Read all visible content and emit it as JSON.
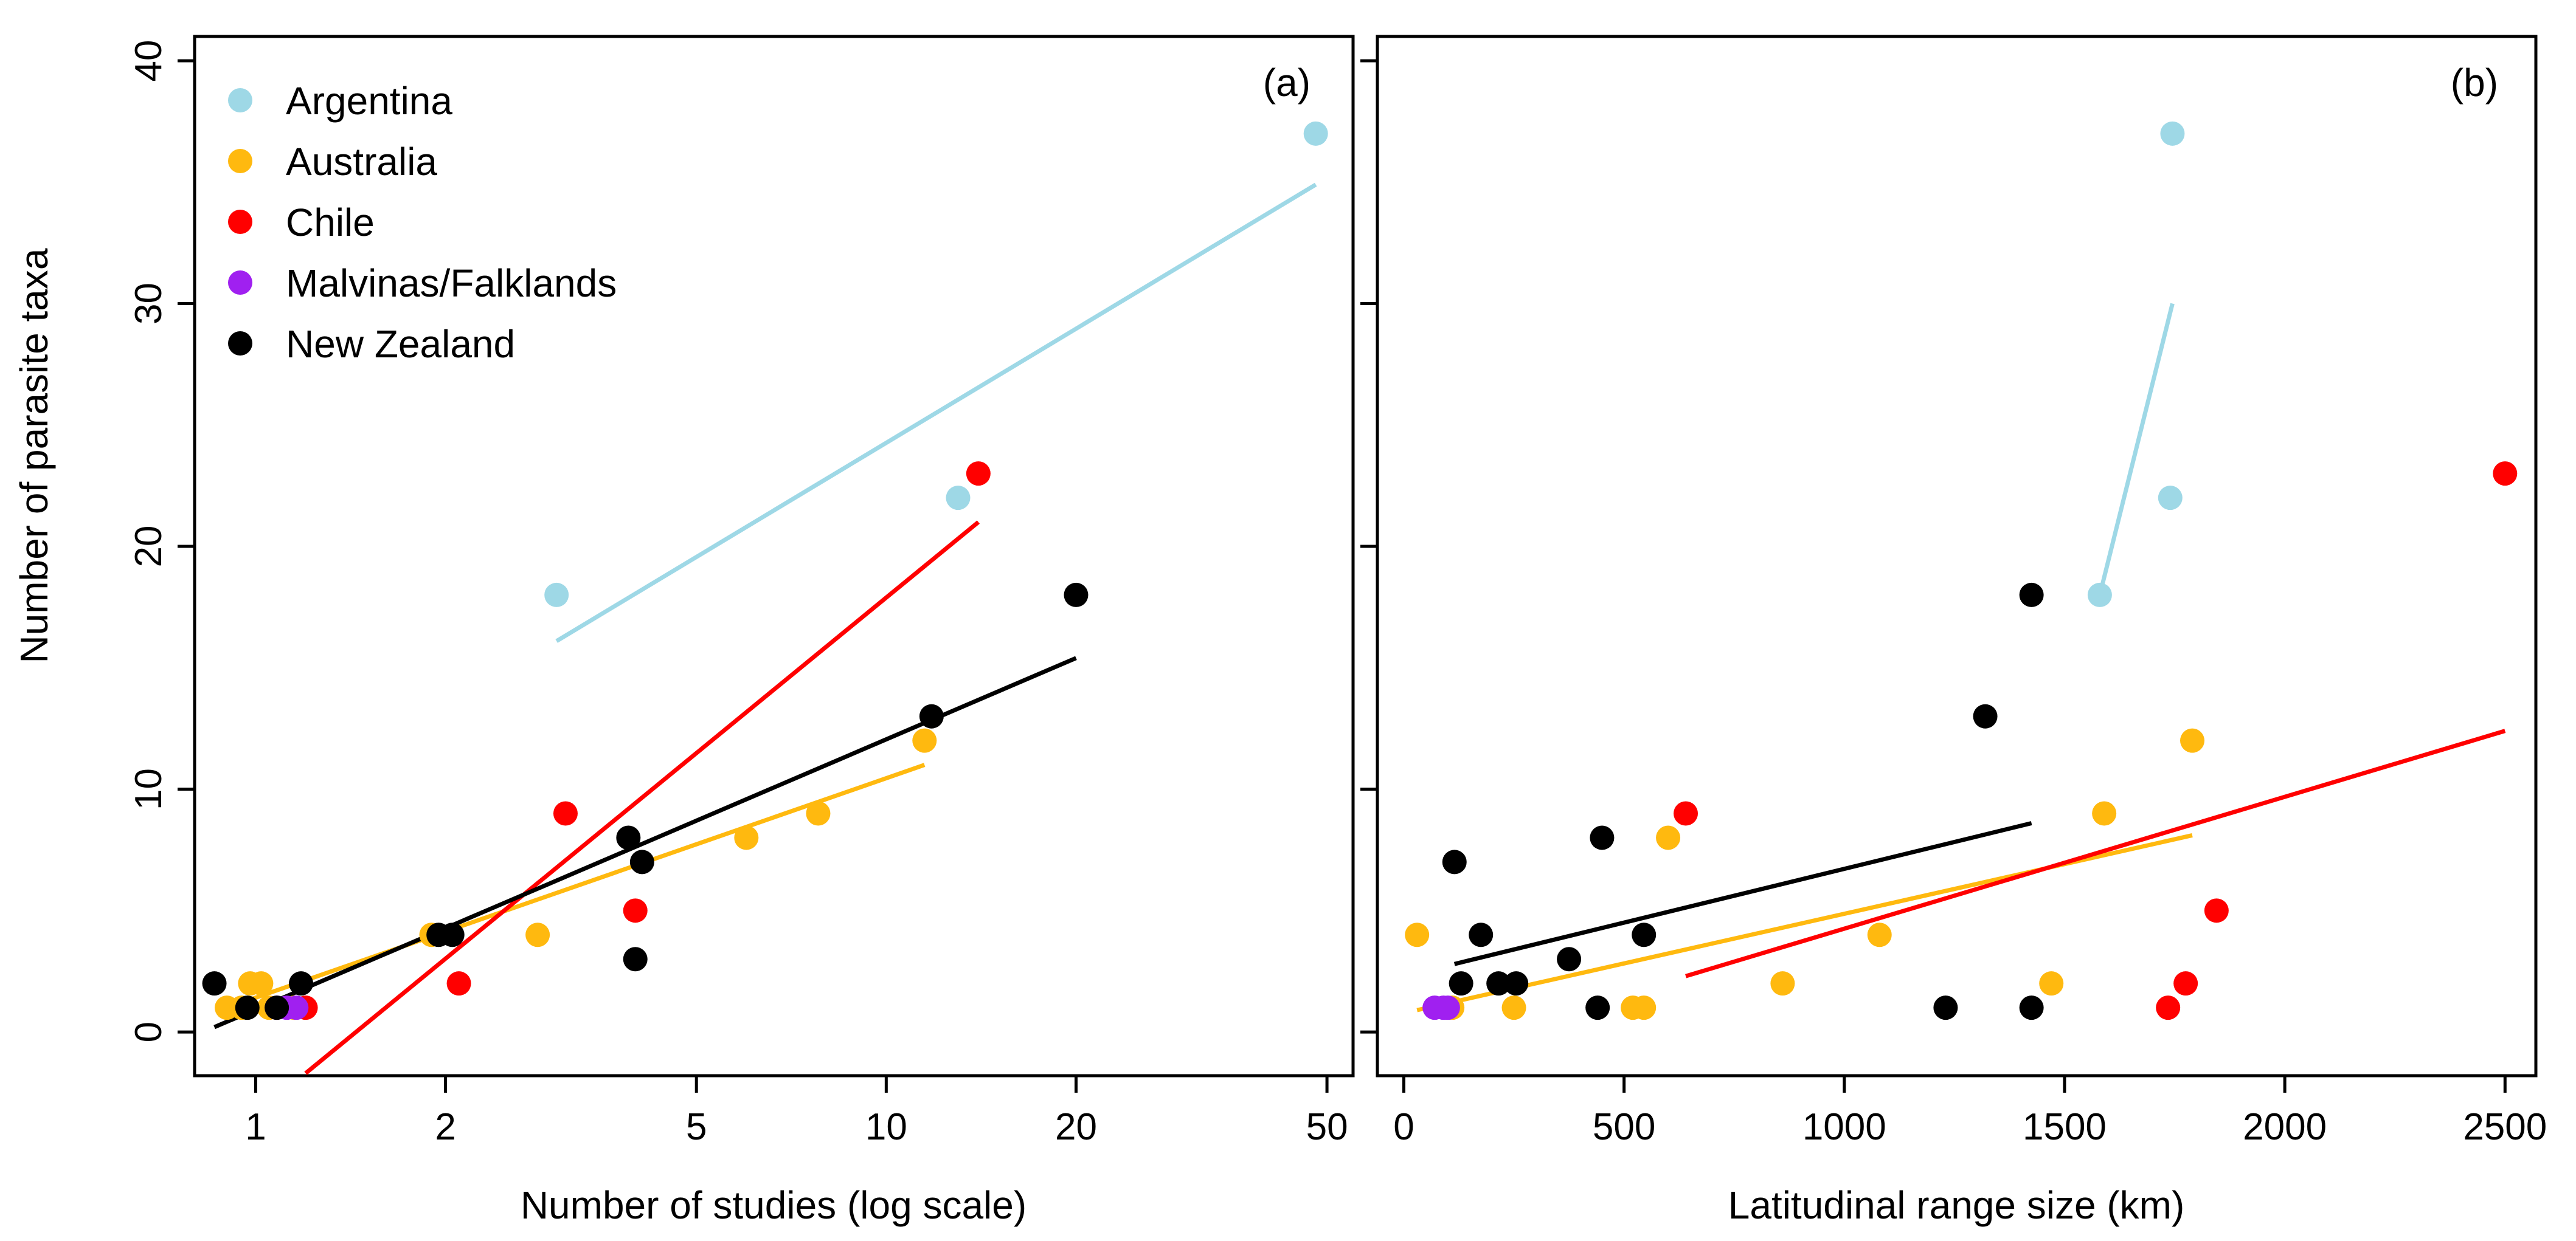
{
  "figure": {
    "shared_ylabel": "Number of parasite taxa"
  },
  "legend": {
    "entries": [
      {
        "label": "Argentina",
        "color": "#9ed8e6"
      },
      {
        "label": "Australia",
        "color": "#ffb90f"
      },
      {
        "label": "Chile",
        "color": "#ff0000"
      },
      {
        "label": "Malvinas/Falklands",
        "color": "#a020f0"
      },
      {
        "label": "New Zealand",
        "color": "#000000"
      }
    ]
  },
  "chart_data": [
    {
      "panel": "(a)",
      "type": "scatter",
      "xlabel": "Number of studies (log scale)",
      "ylabel": "Number of parasite taxa",
      "x_scale": "log",
      "xlim": [
        0.8,
        55
      ],
      "ylim": [
        -1.8,
        41
      ],
      "xticks": [
        1,
        2,
        5,
        10,
        20,
        50
      ],
      "yticks": [
        0,
        10,
        20,
        30,
        40
      ],
      "series": [
        {
          "name": "Argentina",
          "color": "#9ed8e6",
          "points": [
            [
              3,
              18
            ],
            [
              13,
              22
            ],
            [
              48,
              37
            ]
          ],
          "fit": [
            [
              3,
              16.1
            ],
            [
              48,
              34.9
            ]
          ]
        },
        {
          "name": "Australia",
          "color": "#ffb90f",
          "points": [
            [
              0.9,
              1
            ],
            [
              0.95,
              1
            ],
            [
              0.98,
              2
            ],
            [
              1.02,
              2
            ],
            [
              1.05,
              1
            ],
            [
              1.15,
              1
            ],
            [
              1.9,
              4
            ],
            [
              2.8,
              4
            ],
            [
              6,
              8
            ],
            [
              7.8,
              9
            ],
            [
              11.5,
              12
            ]
          ],
          "fit": [
            [
              0.9,
              1.0
            ],
            [
              11.5,
              11.0
            ]
          ]
        },
        {
          "name": "Chile",
          "color": "#ff0000",
          "points": [
            [
              1.2,
              1
            ],
            [
              2.1,
              2
            ],
            [
              3.1,
              9
            ],
            [
              4,
              5
            ],
            [
              14,
              23
            ]
          ],
          "fit": [
            [
              1.2,
              -1.7
            ],
            [
              14,
              21.0
            ]
          ]
        },
        {
          "name": "Malvinas/Falklands",
          "color": "#a020f0",
          "points": [
            [
              1.08,
              1
            ],
            [
              1.12,
              1
            ],
            [
              1.16,
              1
            ]
          ],
          "fit": null
        },
        {
          "name": "New Zealand",
          "color": "#000000",
          "points": [
            [
              0.86,
              2
            ],
            [
              0.97,
              1
            ],
            [
              1.08,
              1
            ],
            [
              1.18,
              2
            ],
            [
              1.95,
              4
            ],
            [
              2.05,
              4
            ],
            [
              3.9,
              8
            ],
            [
              4.1,
              7
            ],
            [
              4,
              3
            ],
            [
              11.8,
              13
            ],
            [
              20,
              18
            ]
          ],
          "fit": [
            [
              0.86,
              0.2
            ],
            [
              20,
              15.4
            ]
          ]
        }
      ]
    },
    {
      "panel": "(b)",
      "type": "scatter",
      "xlabel": "Latitudinal range size (km)",
      "ylabel": "",
      "x_scale": "linear",
      "xlim": [
        -60,
        2570
      ],
      "ylim": [
        -1.8,
        41
      ],
      "xticks": [
        0,
        500,
        1000,
        1500,
        2000,
        2500
      ],
      "yticks": [
        0,
        10,
        20,
        30,
        40
      ],
      "series": [
        {
          "name": "Argentina",
          "color": "#9ed8e6",
          "points": [
            [
              1580,
              18
            ],
            [
              1740,
              22
            ],
            [
              1745,
              37
            ]
          ],
          "fit": [
            [
              1580,
              18.0
            ],
            [
              1745,
              30.0
            ]
          ]
        },
        {
          "name": "Australia",
          "color": "#ffb90f",
          "points": [
            [
              30,
              4
            ],
            [
              110,
              1
            ],
            [
              250,
              1
            ],
            [
              520,
              1
            ],
            [
              545,
              1
            ],
            [
              600,
              8
            ],
            [
              860,
              2
            ],
            [
              1080,
              4
            ],
            [
              1470,
              2
            ],
            [
              1590,
              9
            ],
            [
              1790,
              12
            ]
          ],
          "fit": [
            [
              30,
              0.9
            ],
            [
              1790,
              8.1
            ]
          ]
        },
        {
          "name": "Chile",
          "color": "#ff0000",
          "points": [
            [
              640,
              9
            ],
            [
              1735,
              1
            ],
            [
              1775,
              2
            ],
            [
              1845,
              5
            ],
            [
              2500,
              23
            ]
          ],
          "fit": [
            [
              640,
              2.3
            ],
            [
              2500,
              12.4
            ]
          ]
        },
        {
          "name": "Malvinas/Falklands",
          "color": "#a020f0",
          "points": [
            [
              70,
              1
            ],
            [
              90,
              1
            ],
            [
              100,
              1
            ]
          ],
          "fit": null
        },
        {
          "name": "New Zealand",
          "color": "#000000",
          "points": [
            [
              115,
              7
            ],
            [
              130,
              2
            ],
            [
              175,
              4
            ],
            [
              215,
              2
            ],
            [
              255,
              2
            ],
            [
              375,
              3
            ],
            [
              440,
              1
            ],
            [
              450,
              8
            ],
            [
              545,
              4
            ],
            [
              1230,
              1
            ],
            [
              1320,
              13
            ],
            [
              1425,
              18
            ],
            [
              1425,
              1
            ]
          ],
          "fit": [
            [
              115,
              2.8
            ],
            [
              1425,
              8.6
            ]
          ]
        }
      ]
    }
  ]
}
